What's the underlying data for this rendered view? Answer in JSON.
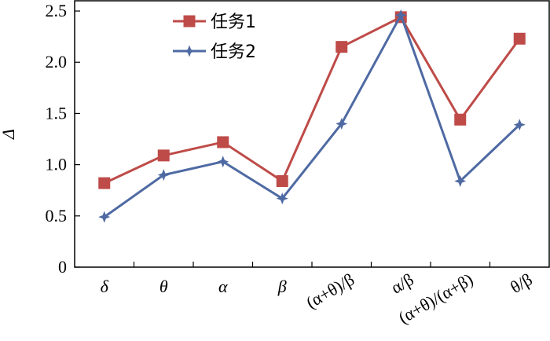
{
  "chart_data": {
    "type": "line",
    "categories": [
      "δ",
      "θ",
      "α",
      "β",
      "(α+θ)/β",
      "α/β",
      "(α+θ)/(α+β)",
      "θ/β"
    ],
    "italic_categories": [
      true,
      true,
      true,
      true,
      false,
      false,
      false,
      false
    ],
    "series": [
      {
        "name": "任务1",
        "values": [
          0.82,
          1.09,
          1.22,
          0.84,
          2.15,
          2.44,
          1.44,
          2.23
        ],
        "color": "#be4b48",
        "marker": "square"
      },
      {
        "name": "任务2",
        "values": [
          0.49,
          0.9,
          1.03,
          0.67,
          1.4,
          2.46,
          0.84,
          1.39
        ],
        "color": "#4f6aa3",
        "marker": "star"
      }
    ],
    "ylabel": "Δ",
    "ylim": [
      0,
      2.6
    ],
    "yticks": [
      "0",
      "0.5",
      "1.0",
      "1.5",
      "2.0",
      "2.5"
    ],
    "ytick_values": [
      0,
      0.5,
      1.0,
      1.5,
      2.0,
      2.5
    ],
    "grid": false,
    "legend_position": "top-left"
  }
}
